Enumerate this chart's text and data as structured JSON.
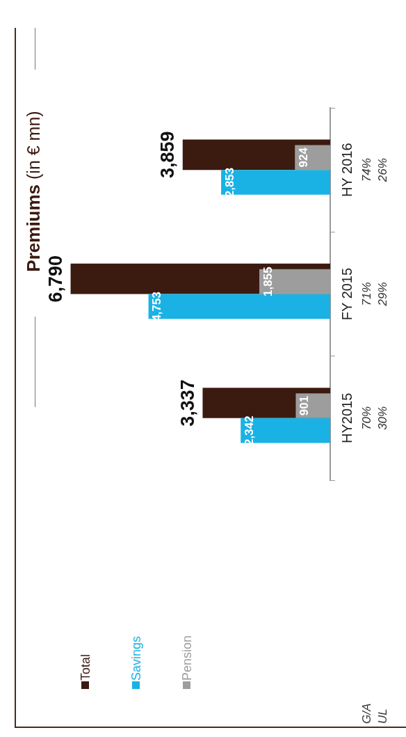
{
  "chart_data": {
    "type": "bar",
    "orientation": "horizontal",
    "title": "Premiums (in € mn)",
    "categories": [
      "HY 2016",
      "FY 2015",
      "HY2015"
    ],
    "series": [
      {
        "name": "Total",
        "color": "#3b1a10",
        "values": [
          3859,
          6790,
          3337
        ],
        "value_labels": [
          "3,859",
          "6,790",
          "3,337"
        ]
      },
      {
        "name": "Savings",
        "color": "#1ab2e4",
        "values": [
          2853,
          4753,
          2342
        ],
        "value_labels": [
          "2,853",
          "4,753",
          "2,342"
        ]
      },
      {
        "name": "Pension",
        "color": "#9d9d9d",
        "values": [
          924,
          1855,
          901
        ],
        "value_labels": [
          "924",
          "1,855",
          "901"
        ]
      }
    ],
    "legend": "bottom left",
    "tick_labels": "y",
    "annotations": [
      "G/A",
      "UL",
      "74%",
      "26%",
      "71%",
      "29%",
      "70%",
      "30%"
    ]
  }
}
